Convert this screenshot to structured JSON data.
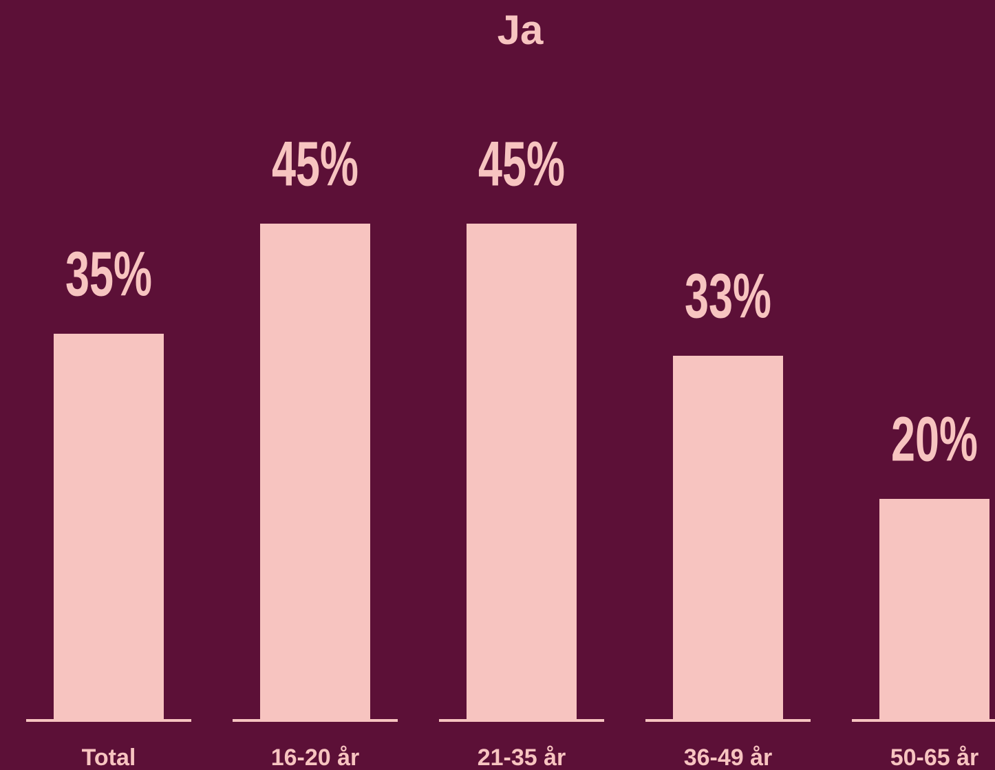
{
  "chart_data": {
    "type": "bar",
    "title": "Ja",
    "categories": [
      "Total",
      "16-20 år",
      "21-35 år",
      "36-49 år",
      "50-65 år"
    ],
    "values": [
      35,
      45,
      45,
      33,
      20
    ],
    "value_labels": [
      "35%",
      "45%",
      "45%",
      "33%",
      "20%"
    ],
    "color": "#f7c4c0"
  }
}
